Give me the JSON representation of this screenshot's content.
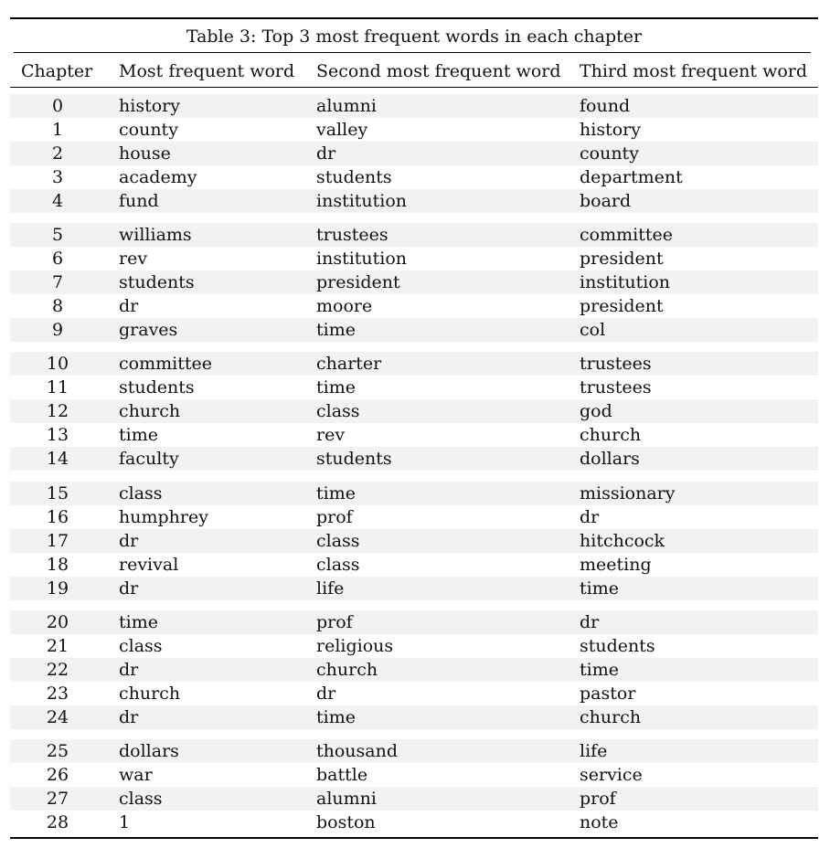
{
  "table": {
    "caption": "Table 3: Top 3 most frequent words in each chapter",
    "headers": [
      "Chapter",
      "Most frequent word",
      "Second most frequent word",
      "Third most frequent word"
    ],
    "rows": [
      [
        "0",
        "history",
        "alumni",
        "found"
      ],
      [
        "1",
        "county",
        "valley",
        "history"
      ],
      [
        "2",
        "house",
        "dr",
        "county"
      ],
      [
        "3",
        "academy",
        "students",
        "department"
      ],
      [
        "4",
        "fund",
        "institution",
        "board"
      ],
      [
        "5",
        "williams",
        "trustees",
        "committee"
      ],
      [
        "6",
        "rev",
        "institution",
        "president"
      ],
      [
        "7",
        "students",
        "president",
        "institution"
      ],
      [
        "8",
        "dr",
        "moore",
        "president"
      ],
      [
        "9",
        "graves",
        "time",
        "col"
      ],
      [
        "10",
        "committee",
        "charter",
        "trustees"
      ],
      [
        "11",
        "students",
        "time",
        "trustees"
      ],
      [
        "12",
        "church",
        "class",
        "god"
      ],
      [
        "13",
        "time",
        "rev",
        "church"
      ],
      [
        "14",
        "faculty",
        "students",
        "dollars"
      ],
      [
        "15",
        "class",
        "time",
        "missionary"
      ],
      [
        "16",
        "humphrey",
        "prof",
        "dr"
      ],
      [
        "17",
        "dr",
        "class",
        "hitchcock"
      ],
      [
        "18",
        "revival",
        "class",
        "meeting"
      ],
      [
        "19",
        "dr",
        "life",
        "time"
      ],
      [
        "20",
        "time",
        "prof",
        "dr"
      ],
      [
        "21",
        "class",
        "religious",
        "students"
      ],
      [
        "22",
        "dr",
        "church",
        "time"
      ],
      [
        "23",
        "church",
        "dr",
        "pastor"
      ],
      [
        "24",
        "dr",
        "time",
        "church"
      ],
      [
        "25",
        "dollars",
        "thousand",
        "life"
      ],
      [
        "26",
        "war",
        "battle",
        "service"
      ],
      [
        "27",
        "class",
        "alumni",
        "prof"
      ],
      [
        "28",
        "1",
        "boston",
        "note"
      ]
    ]
  }
}
